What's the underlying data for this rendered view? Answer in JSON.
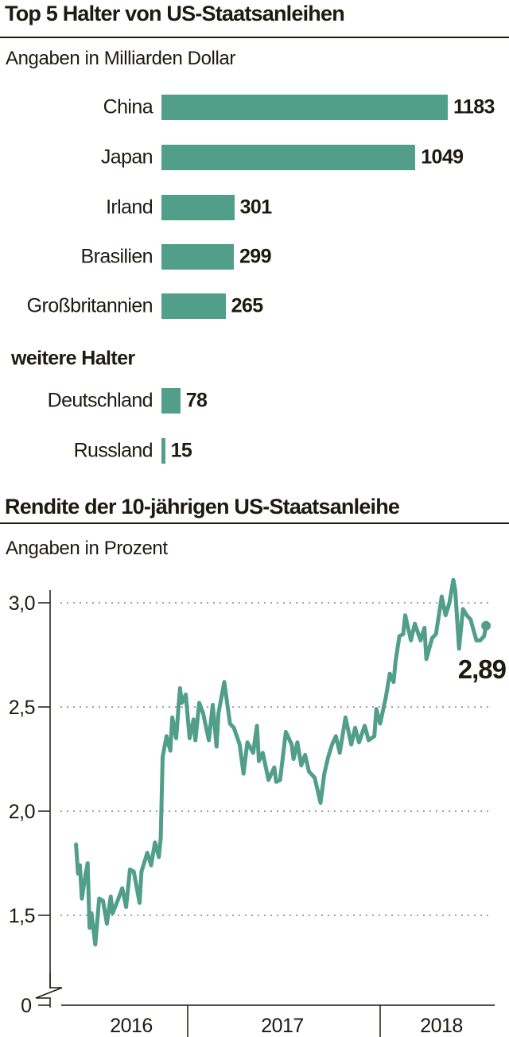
{
  "colors": {
    "accent": "#519e89",
    "text": "#1e1a0f",
    "grid": "#a0a0a0"
  },
  "chart_data": [
    {
      "type": "bar",
      "orientation": "horizontal",
      "title": "Top 5 Halter von US-Staatsanleihen",
      "subtitle": "Angaben in Milliarden Dollar",
      "categories": [
        "China",
        "Japan",
        "Irland",
        "Brasilien",
        "Großbritannien"
      ],
      "values": [
        1183,
        1049,
        301,
        299,
        265
      ],
      "value_labels": [
        "1183",
        "1049",
        "301",
        "299",
        "265"
      ],
      "section_label": "weitere Halter",
      "extra_categories": [
        "Deutschland",
        "Russland"
      ],
      "extra_values": [
        78,
        15
      ],
      "extra_value_labels": [
        "78",
        "15"
      ]
    },
    {
      "type": "line",
      "title": "Rendite der 10-jährigen US-Staatsanleihe",
      "subtitle": "Angaben in Prozent",
      "ylim": [
        1.3,
        3.1
      ],
      "yticks": [
        {
          "v": 3.0,
          "label": "3,0"
        },
        {
          "v": 2.5,
          "label": "2,5"
        },
        {
          "v": 2.0,
          "label": "2,0"
        },
        {
          "v": 1.5,
          "label": "1,5"
        }
      ],
      "y_zero_label": "0",
      "y_axis_break": true,
      "grid": "horizontal-dotted",
      "x_labels": [
        "2016",
        "2017",
        "2018"
      ],
      "last_value_label": "2,89",
      "series": [
        {
          "name": "Rendite",
          "x": [
            2016.42,
            2016.43,
            2016.44,
            2016.45,
            2016.47,
            2016.48,
            2016.49,
            2016.5,
            2016.52,
            2016.54,
            2016.56,
            2016.58,
            2016.6,
            2016.61,
            2016.64,
            2016.66,
            2016.68,
            2016.7,
            2016.72,
            2016.75,
            2016.76,
            2016.79,
            2016.81,
            2016.83,
            2016.85,
            2016.86,
            2016.87,
            2016.89,
            2016.91,
            2016.92,
            2016.94,
            2016.96,
            2016.97,
            2016.99,
            2017.01,
            2017.03,
            2017.04,
            2017.06,
            2017.08,
            2017.11,
            2017.13,
            2017.15,
            2017.16,
            2017.19,
            2017.22,
            2017.24,
            2017.27,
            2017.29,
            2017.31,
            2017.34,
            2017.36,
            2017.37,
            2017.39,
            2017.42,
            2017.45,
            2017.46,
            2017.48,
            2017.51,
            2017.54,
            2017.55,
            2017.57,
            2017.59,
            2017.61,
            2017.63,
            2017.66,
            2017.69,
            2017.71,
            2017.73,
            2017.75,
            2017.77,
            2017.79,
            2017.82,
            2017.85,
            2017.87,
            2017.89,
            2017.92,
            2017.94,
            2017.97,
            2017.98,
            2018.0,
            2018.03,
            2018.05,
            2018.07,
            2018.08,
            2018.1,
            2018.12,
            2018.13,
            2018.16,
            2018.18,
            2018.21,
            2018.23,
            2018.24,
            2018.27,
            2018.29,
            2018.32,
            2018.34,
            2018.36,
            2018.38,
            2018.39,
            2018.41,
            2018.43,
            2018.45,
            2018.47,
            2018.5,
            2018.52,
            2018.54,
            2018.55
          ],
          "y": [
            1.84,
            1.7,
            1.74,
            1.58,
            1.7,
            1.75,
            1.44,
            1.51,
            1.36,
            1.58,
            1.57,
            1.46,
            1.59,
            1.51,
            1.58,
            1.63,
            1.54,
            1.72,
            1.71,
            1.56,
            1.71,
            1.8,
            1.74,
            1.85,
            1.78,
            1.87,
            2.26,
            2.36,
            2.29,
            2.45,
            2.35,
            2.59,
            2.52,
            2.56,
            2.35,
            2.44,
            2.34,
            2.52,
            2.47,
            2.34,
            2.51,
            2.31,
            2.47,
            2.62,
            2.42,
            2.4,
            2.32,
            2.18,
            2.33,
            2.28,
            2.41,
            2.24,
            2.28,
            2.15,
            2.21,
            2.14,
            2.15,
            2.38,
            2.32,
            2.25,
            2.33,
            2.22,
            2.27,
            2.19,
            2.16,
            2.04,
            2.18,
            2.26,
            2.32,
            2.36,
            2.28,
            2.45,
            2.32,
            2.4,
            2.33,
            2.41,
            2.34,
            2.36,
            2.49,
            2.42,
            2.55,
            2.66,
            2.62,
            2.72,
            2.84,
            2.85,
            2.94,
            2.82,
            2.9,
            2.82,
            2.88,
            2.73,
            2.83,
            2.85,
            3.03,
            2.94,
            3.0,
            3.11,
            3.06,
            2.78,
            2.97,
            2.94,
            2.92,
            2.82,
            2.82,
            2.84,
            2.89
          ]
        }
      ]
    }
  ]
}
